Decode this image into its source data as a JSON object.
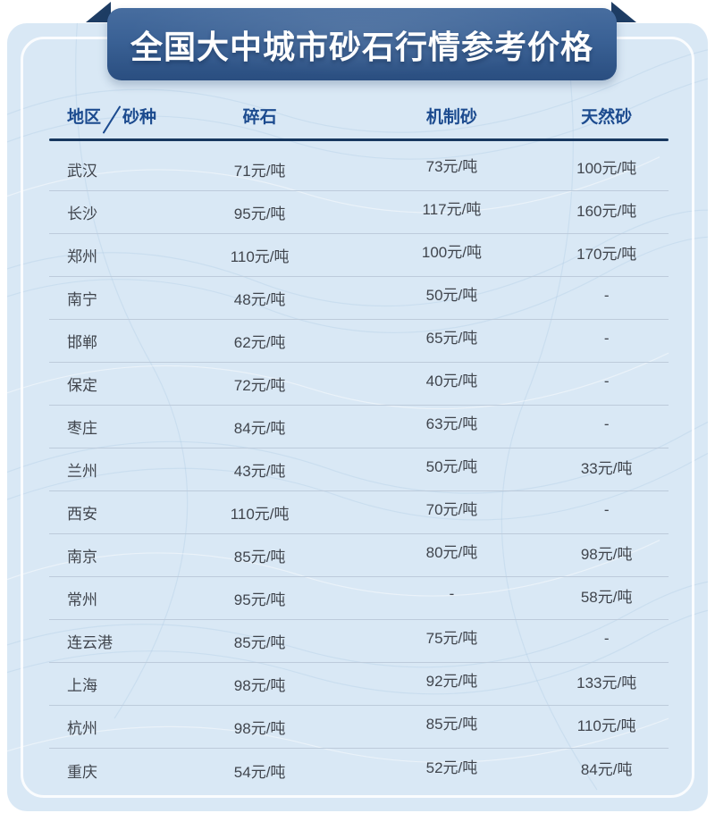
{
  "banner": {
    "title": "全国大中城市砂石行情参考价格"
  },
  "table": {
    "corner": {
      "region_label": "地区",
      "type_label": "砂种"
    },
    "columns": [
      "碎石",
      "机制砂",
      "天然砂"
    ],
    "rows": [
      {
        "city": "武汉",
        "values": [
          "71元/吨",
          "73元/吨",
          "100元/吨"
        ]
      },
      {
        "city": "长沙",
        "values": [
          "95元/吨",
          "117元/吨",
          "160元/吨"
        ]
      },
      {
        "city": "郑州",
        "values": [
          "110元/吨",
          "100元/吨",
          "170元/吨"
        ]
      },
      {
        "city": "南宁",
        "values": [
          "48元/吨",
          "50元/吨",
          "-"
        ]
      },
      {
        "city": "邯郸",
        "values": [
          "62元/吨",
          "65元/吨",
          "-"
        ]
      },
      {
        "city": "保定",
        "values": [
          "72元/吨",
          "40元/吨",
          "-"
        ]
      },
      {
        "city": "枣庄",
        "values": [
          "84元/吨",
          "63元/吨",
          "-"
        ]
      },
      {
        "city": "兰州",
        "values": [
          "43元/吨",
          "50元/吨",
          "33元/吨"
        ]
      },
      {
        "city": "西安",
        "values": [
          "110元/吨",
          "70元/吨",
          "-"
        ]
      },
      {
        "city": "南京",
        "values": [
          "85元/吨",
          "80元/吨",
          "98元/吨"
        ]
      },
      {
        "city": "常州",
        "values": [
          "95元/吨",
          "-",
          "58元/吨"
        ]
      },
      {
        "city": "连云港",
        "values": [
          "85元/吨",
          "75元/吨",
          "-"
        ]
      },
      {
        "city": "上海",
        "values": [
          "98元/吨",
          "92元/吨",
          "133元/吨"
        ]
      },
      {
        "city": "杭州",
        "values": [
          "98元/吨",
          "85元/吨",
          "110元/吨"
        ]
      },
      {
        "city": "重庆",
        "values": [
          "54元/吨",
          "52元/吨",
          "84元/吨"
        ]
      }
    ]
  },
  "colors": {
    "banner_gradient_top": "#476d9f",
    "banner_gradient_mid": "#3a6195",
    "banner_gradient_bottom": "#2a4e80",
    "ribbon_fold": "#1e3d64",
    "card_background": "#d9e8f5",
    "header_text": "#1c4b8f",
    "header_underline": "#17375f",
    "body_text": "#40454d",
    "row_divider": "#bdcbdb"
  },
  "chart_data": {
    "type": "table",
    "title": "全国大中城市砂石行情参考价格",
    "unit": "元/吨",
    "row_header": "地区",
    "column_header": "砂种",
    "categories": [
      "武汉",
      "长沙",
      "郑州",
      "南宁",
      "邯郸",
      "保定",
      "枣庄",
      "兰州",
      "西安",
      "南京",
      "常州",
      "连云港",
      "上海",
      "杭州",
      "重庆"
    ],
    "series": [
      {
        "name": "碎石",
        "values": [
          71,
          95,
          110,
          48,
          62,
          72,
          84,
          43,
          110,
          85,
          95,
          85,
          98,
          98,
          54
        ]
      },
      {
        "name": "机制砂",
        "values": [
          73,
          117,
          100,
          50,
          65,
          40,
          63,
          50,
          70,
          80,
          null,
          75,
          92,
          85,
          52
        ]
      },
      {
        "name": "天然砂",
        "values": [
          100,
          160,
          170,
          null,
          null,
          null,
          null,
          33,
          null,
          98,
          58,
          null,
          133,
          110,
          84
        ]
      }
    ]
  }
}
